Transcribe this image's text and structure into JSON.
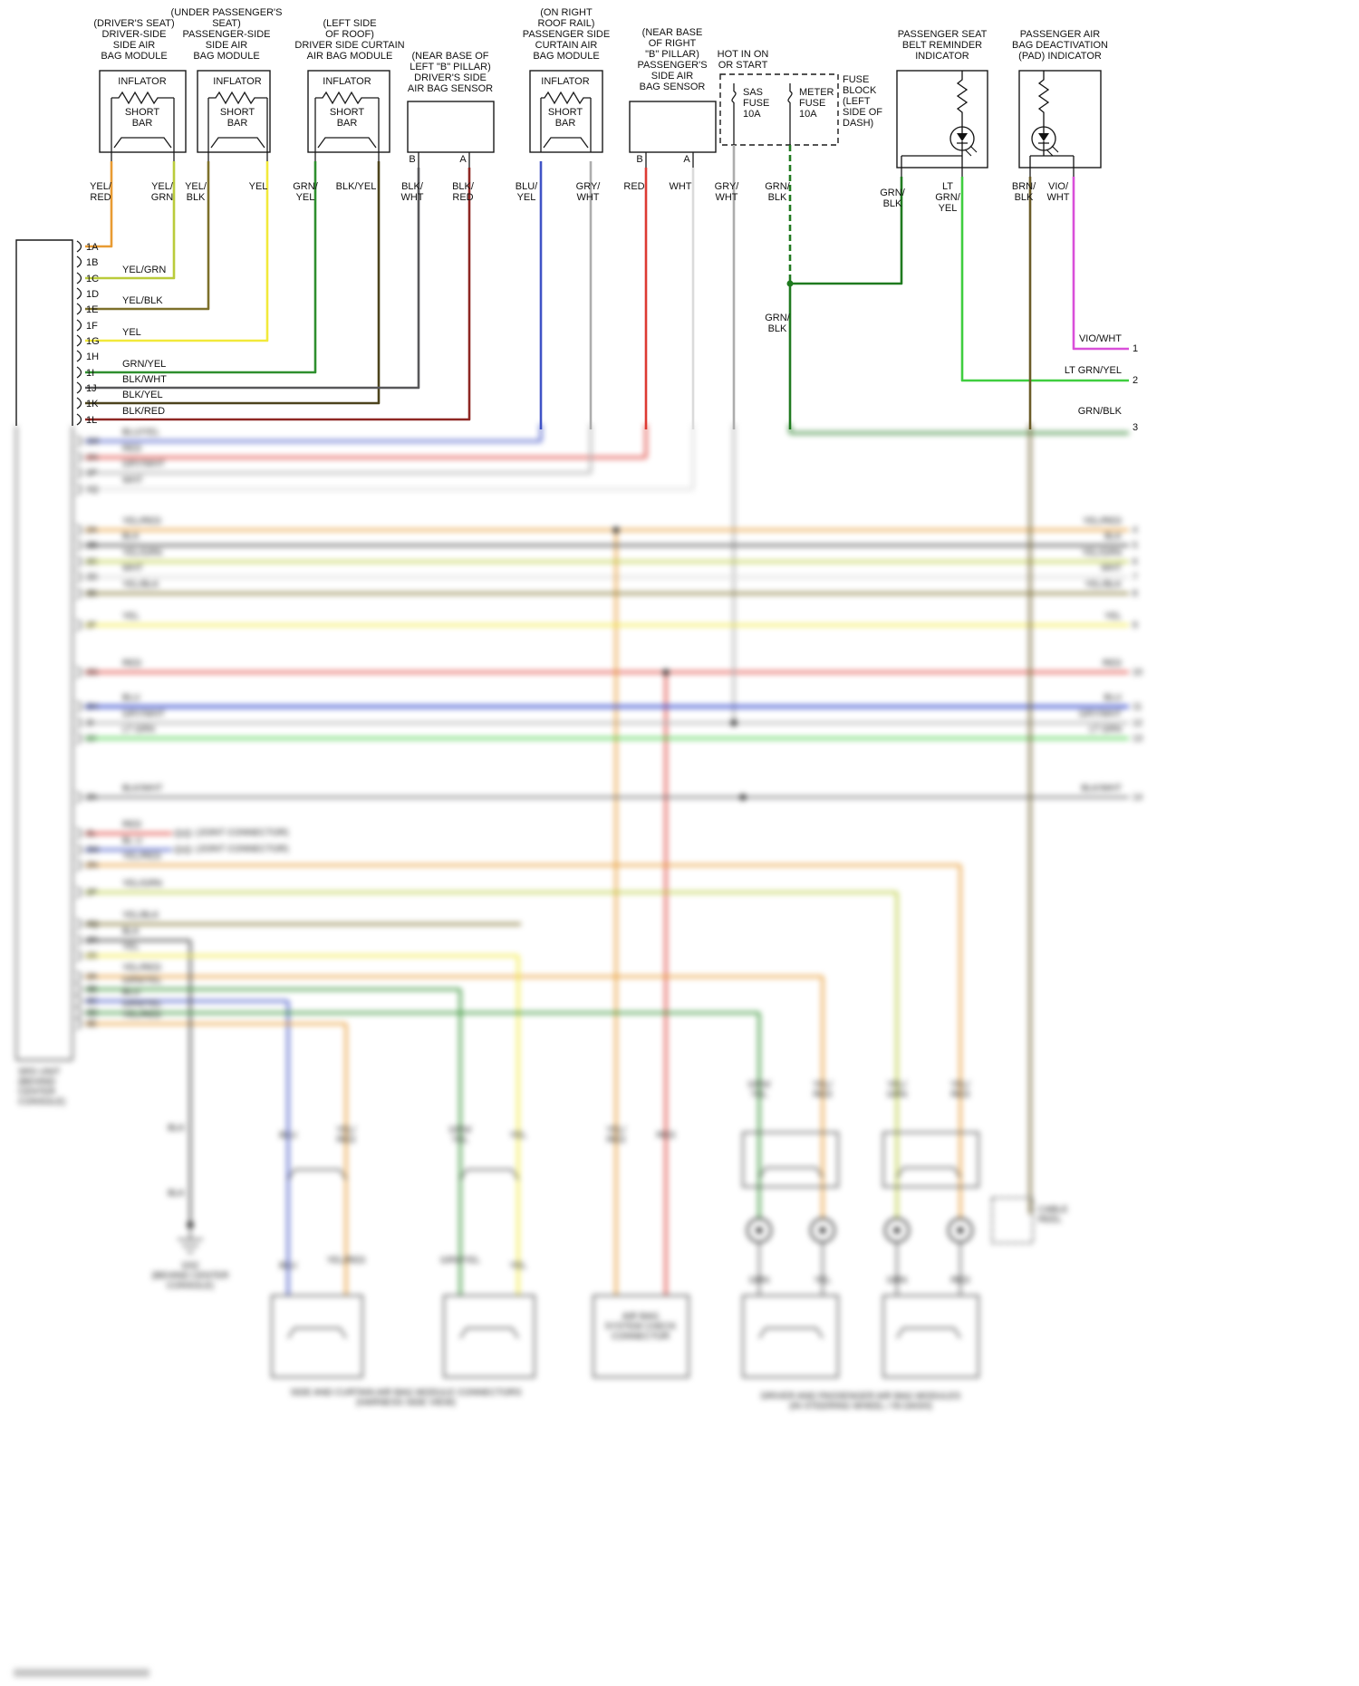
{
  "colors": {
    "yel_red": "#E89B33",
    "yel_grn": "#BACB3B",
    "yel_blk": "#7D702B",
    "yel": "#F2E93A",
    "grn_yel": "#2E8F2E",
    "blk_yel": "#4C431C",
    "blk_wht": "#58585A",
    "blk_red": "#8E2723",
    "blu_yel": "#4053C6",
    "gry_wht": "#ADADAD",
    "red": "#DD3A33",
    "wht": "#DBDBDB",
    "grn_blk": "#1F7A1F",
    "lt_grn_yel": "#3FCE3F",
    "brn_blk": "#6B5B28",
    "vio_wht": "#D94FD9",
    "blu": "#3A4FD0",
    "blk": "#3A3A3A"
  },
  "top": {
    "mod1": {
      "title": [
        "(DRIVER'S SEAT)",
        "DRIVER-SIDE",
        "SIDE AIR",
        "BAG MODULE"
      ],
      "inflator": "INFLATOR",
      "short_bar": [
        "SHORT",
        "BAR"
      ]
    },
    "mod2": {
      "title": [
        "(UNDER PASSENGER'S",
        "SEAT)",
        "PASSENGER-SIDE",
        "SIDE AIR",
        "BAG MODULE"
      ],
      "inflator": "INFLATOR",
      "short_bar": [
        "SHORT",
        "BAR"
      ]
    },
    "mod3": {
      "title": [
        "(LEFT SIDE",
        "OF ROOF)",
        "DRIVER SIDE CURTAIN",
        "AIR BAG MODULE"
      ],
      "inflator": "INFLATOR",
      "short_bar": [
        "SHORT",
        "BAR"
      ]
    },
    "sensor1": {
      "title": [
        "(NEAR BASE OF",
        "LEFT \"B\" PILLAR)",
        "DRIVER'S SIDE",
        "AIR BAG SENSOR"
      ],
      "term_b": "B",
      "term_a": "A"
    },
    "mod4": {
      "title": [
        "(ON RIGHT",
        "ROOF RAIL)",
        "PASSENGER SIDE",
        "CURTAIN AIR",
        "BAG MODULE"
      ],
      "inflator": "INFLATOR",
      "short_bar": [
        "SHORT",
        "BAR"
      ]
    },
    "sensor2": {
      "title": [
        "(NEAR BASE",
        "OF RIGHT",
        "\"B\" PILLAR)",
        "PASSENGER'S",
        "SIDE AIR",
        "BAG SENSOR"
      ],
      "term_b": "B",
      "term_a": "A"
    },
    "power": {
      "hot": [
        "HOT IN ON",
        "OR START"
      ],
      "fuse1": [
        "SAS",
        "FUSE",
        "10A"
      ],
      "fuse2": [
        "METER",
        "FUSE",
        "10A"
      ],
      "block": [
        "FUSE",
        "BLOCK",
        "(LEFT",
        "SIDE OF",
        "DASH)"
      ]
    },
    "ind1": {
      "title": [
        "PASSENGER SEAT",
        "BELT REMINDER",
        "INDICATOR"
      ]
    },
    "ind2": {
      "title": [
        "PASSENGER AIR",
        "BAG DEACTIVATION",
        "(PAD) INDICATOR"
      ]
    },
    "wires": [
      [
        "YEL/",
        "RED"
      ],
      [
        "YEL/",
        "GRN"
      ],
      [
        "YEL/",
        "BLK"
      ],
      [
        "YEL"
      ],
      [
        "GRN/",
        "YEL"
      ],
      [
        "BLK/YEL"
      ],
      [
        "BLK/",
        "WHT"
      ],
      [
        "BLK/",
        "RED"
      ],
      [
        "BLU/",
        "YEL"
      ],
      [
        "GRY/",
        "WHT"
      ],
      [
        "RED"
      ],
      [
        "WHT"
      ],
      [
        "GRY/",
        "WHT"
      ],
      [
        "GRN/",
        "BLK"
      ],
      [
        "GRN/",
        "BLK"
      ],
      [
        "LT",
        "GRN/",
        "YEL"
      ],
      [
        "BRN/",
        "BLK"
      ],
      [
        "VIO/",
        "WHT"
      ]
    ],
    "grnblk2": [
      "GRN/",
      "BLK"
    ]
  },
  "connector": {
    "pins": [
      "1A",
      "1B",
      "1C",
      "1D",
      "1E",
      "1F",
      "1G",
      "1H",
      "1I",
      "1J",
      "1K",
      "1L"
    ],
    "colors": [
      "YEL/GRN",
      "YEL/BLK",
      "YEL",
      "GRN/YEL",
      "BLK/WHT",
      "BLK/YEL",
      "BLK/RED"
    ]
  },
  "right_edge": {
    "labels": [
      "VIO/WHT",
      "LT GRN/YEL",
      "GRN/BLK"
    ],
    "nums": [
      "1",
      "2",
      "3"
    ]
  },
  "blur": {
    "pins": [
      "1M",
      "1N",
      "1P",
      "1Q",
      "2A",
      "2B",
      "2C",
      "2D",
      "2E",
      "2F",
      "2G",
      "2H",
      "2I",
      "2J",
      "2K",
      "2L",
      "2M",
      "2N",
      "2P",
      "2Q",
      "2R",
      "2S",
      "3A",
      "3B",
      "3C",
      "3D",
      "3E"
    ],
    "left": [
      "BLU/YEL",
      "RED",
      "GRY/WHT",
      "WHT",
      "YEL/RED",
      "BLK",
      "YEL/GRN",
      "WHT",
      "YEL/BLK",
      "YEL",
      "RED",
      "BLU",
      "GRY/WHT",
      "LT GRN",
      "BLK/WHT",
      "RED",
      "BL U",
      "YEL/RED",
      "YEL/GRN",
      "YEL/BLK",
      "BLK",
      "YEL",
      "YEL/RED",
      "GRN/YEL",
      "BLU",
      "GRN/YEL",
      "YEL/RED"
    ],
    "right": [
      "YEL/RED",
      "BLK",
      "YEL/GRN",
      "WHT",
      "YEL/BLK",
      "YEL",
      "RED",
      "BLU",
      "GRY/WHT",
      "LT GRN",
      "BLK/WHT"
    ],
    "nums": [
      "4",
      "5",
      "6",
      "7",
      "8",
      "9",
      "10",
      "11",
      "12",
      "13",
      "14"
    ],
    "srs_caption": [
      "SRS UNIT",
      "(BEHIND",
      "CENTER",
      "CONSOLE)"
    ],
    "joint1": "(JOINT CONNECTOR)",
    "joint2": "(JOINT CONNECTOR)",
    "blk_upper": "BLK",
    "blk_lower": "BLK",
    "ground": [
      "G52",
      "(BEHIND CENTER",
      "CONSOLE)"
    ],
    "modA_l": [
      "BLU"
    ],
    "modA_r": [
      "YEL/",
      "RED"
    ],
    "modB_l": [
      "GRN/",
      "YEL"
    ],
    "modB_r": [
      "YEL"
    ],
    "modA_l2": "BLU",
    "modA_r2": "YEL/RED",
    "modB_l2": "GRN/YEL",
    "modB_r2": "YEL",
    "mid_l": [
      "YEL/",
      "RED"
    ],
    "mid_r": [
      "RED"
    ],
    "mid_box": [
      "AIR BAG",
      "SYSTEM CHECK",
      "CONNECTOR"
    ],
    "left_caption": [
      "SIDE AND CURTAIN AIR BAG MODULE CONNECTORS",
      "(HARNESS SIDE VIEW)"
    ],
    "rg1": [
      "GRN/",
      "YEL"
    ],
    "rg2": [
      "YEL/",
      "RED"
    ],
    "rg3": [
      "YEL/",
      "GRN"
    ],
    "rg4": [
      "YEL/",
      "RED"
    ],
    "rgm1": "GRN",
    "rgm2": "YEL",
    "rgm3": "GRN",
    "rgm4": "RED",
    "right_caption": [
      "DRIVER AND PASSENGER AIR BAG MODULES",
      "(IN STEERING WHEEL / IN DASH)"
    ],
    "reel": [
      "CABLE",
      "REEL"
    ]
  }
}
